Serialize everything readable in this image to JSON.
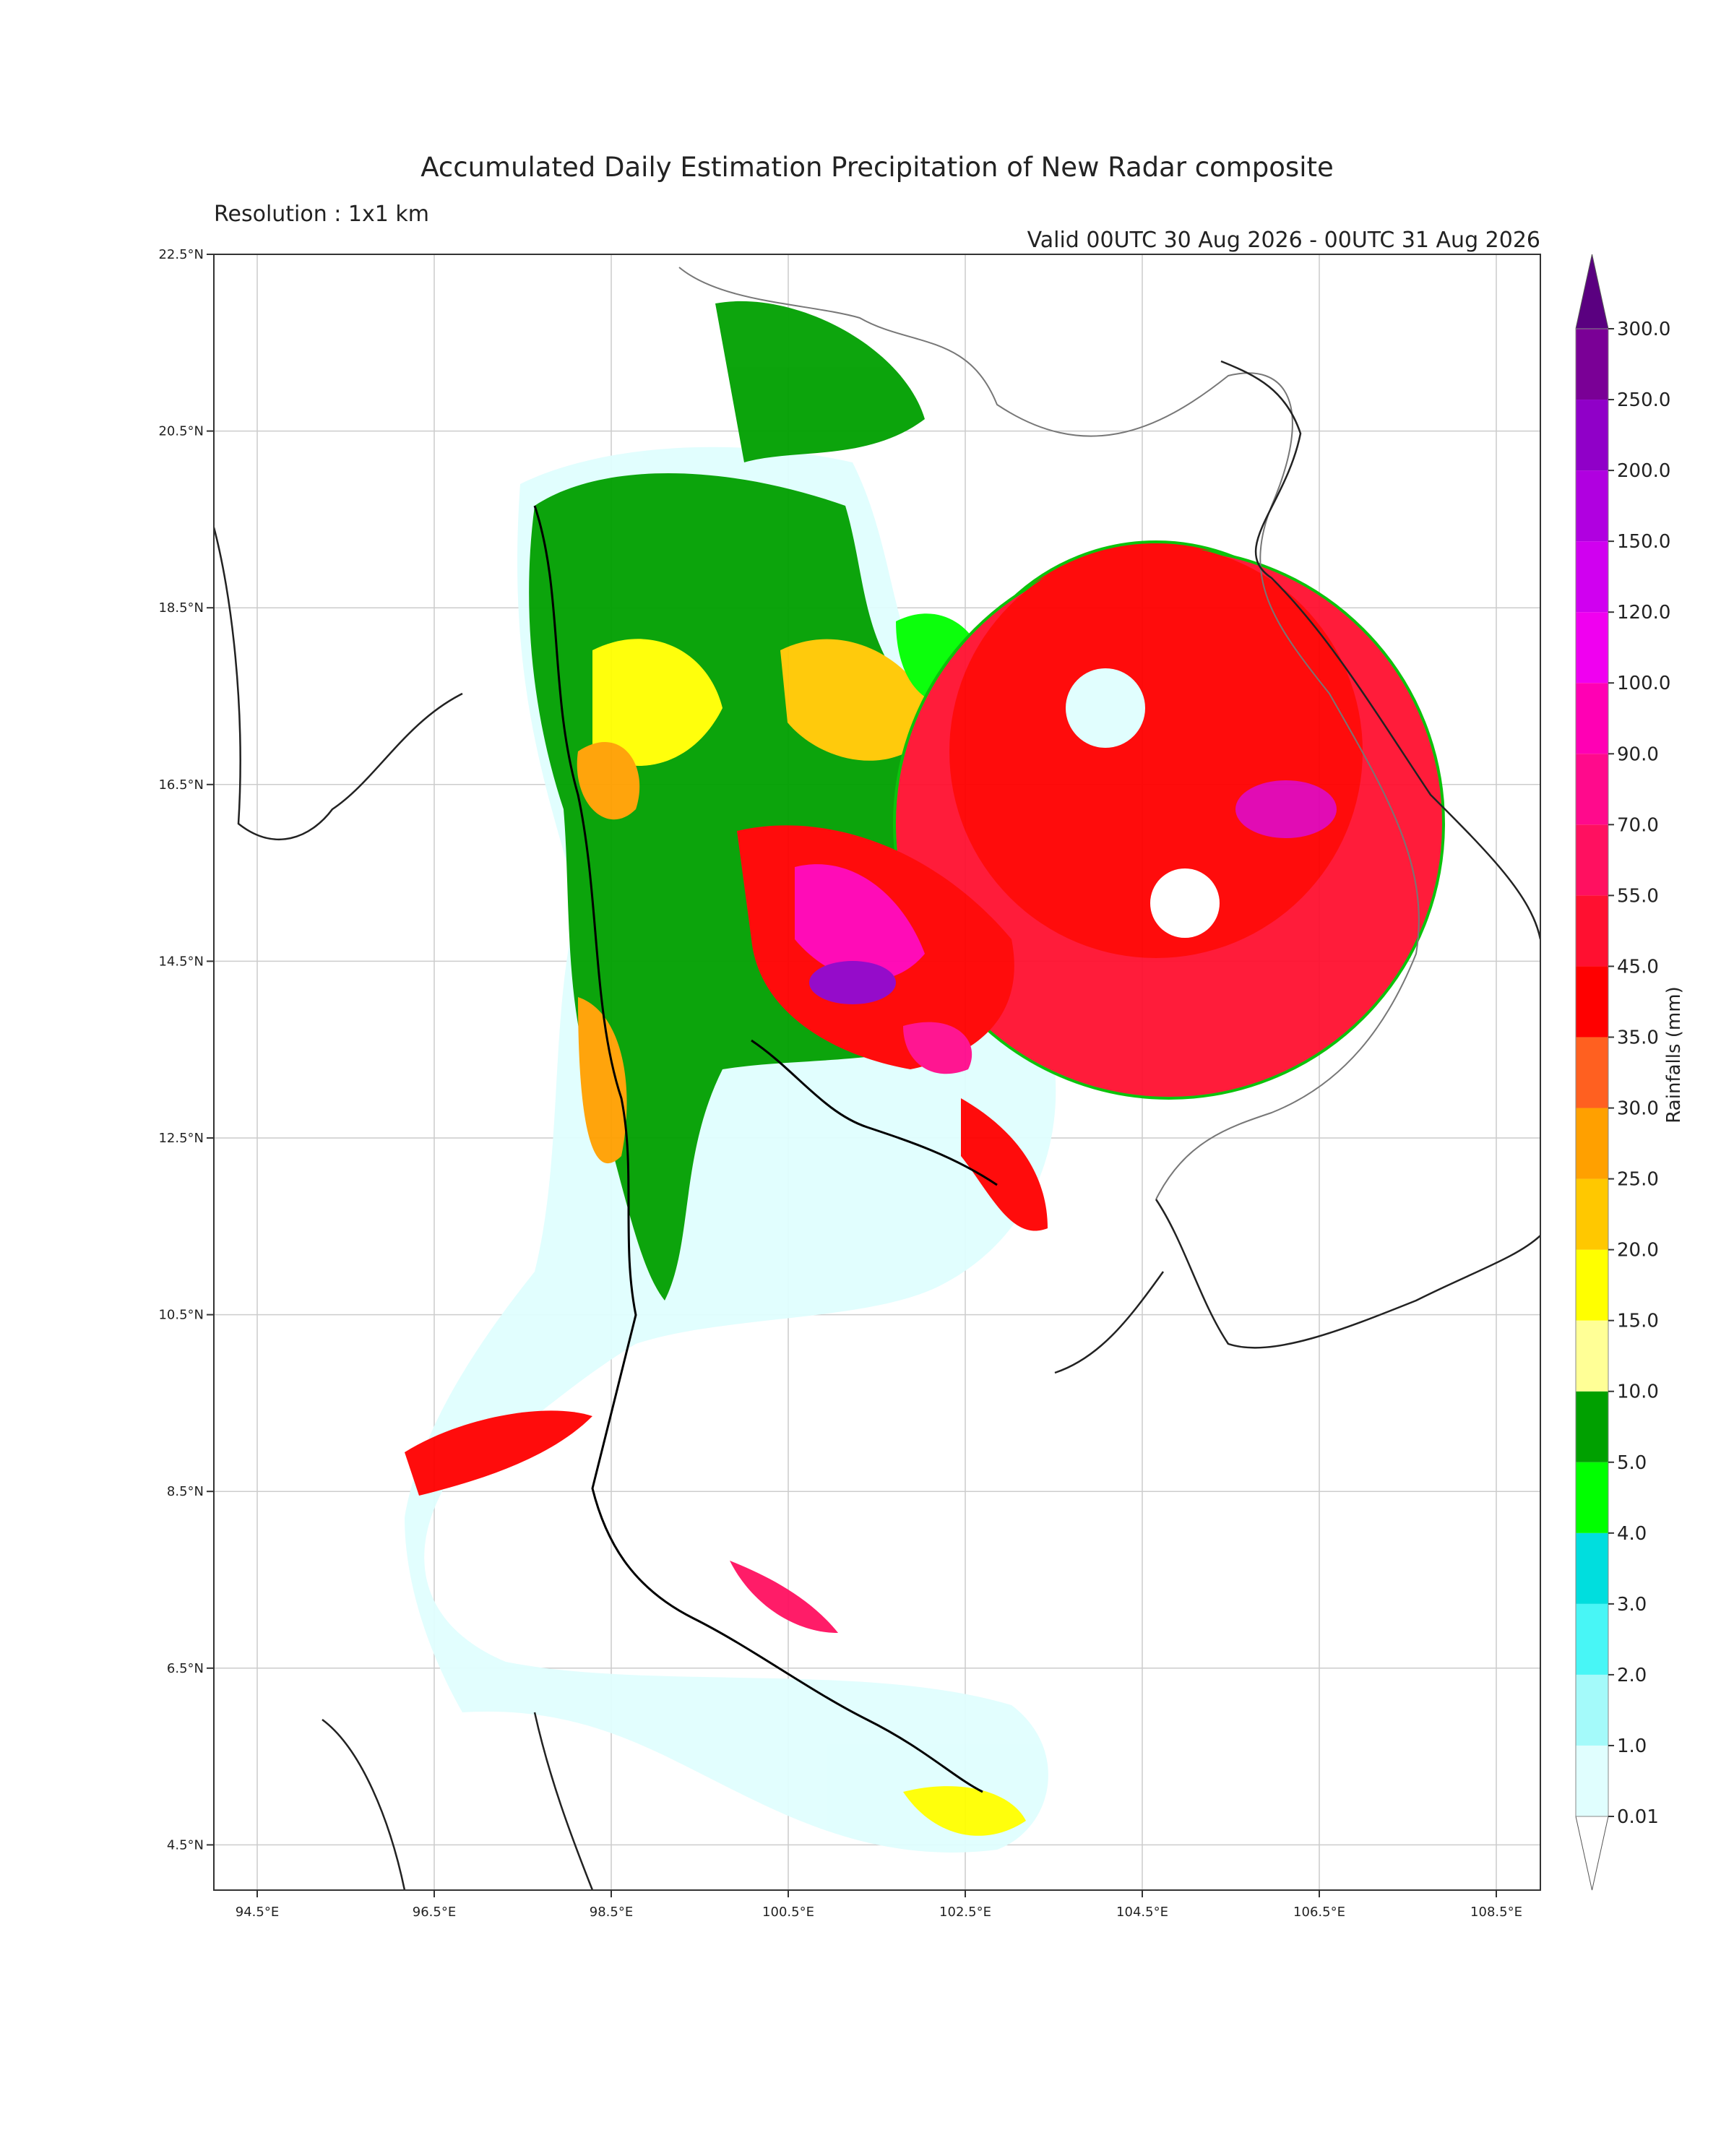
{
  "title": "Accumulated Daily Estimation Precipitation of New Radar composite",
  "subtitle": "Resolution : 1x1 km",
  "valid": "Valid 00UTC 30 Aug 2026 - 00UTC 31 Aug 2026",
  "map": {
    "grid": true,
    "lon_ticks": [
      {
        "value": 94.5,
        "label": "94.5°E"
      },
      {
        "value": 96.5,
        "label": "96.5°E"
      },
      {
        "value": 98.5,
        "label": "98.5°E"
      },
      {
        "value": 100.5,
        "label": "100.5°E"
      },
      {
        "value": 102.5,
        "label": "102.5°E"
      },
      {
        "value": 104.5,
        "label": "104.5°E"
      },
      {
        "value": 106.5,
        "label": "106.5°E"
      },
      {
        "value": 108.5,
        "label": "108.5°E"
      }
    ],
    "lat_ticks": [
      {
        "value": 22.5,
        "label": "22.5°N"
      },
      {
        "value": 20.5,
        "label": "20.5°N"
      },
      {
        "value": 18.5,
        "label": "18.5°N"
      },
      {
        "value": 16.5,
        "label": "16.5°N"
      },
      {
        "value": 14.5,
        "label": "14.5°N"
      },
      {
        "value": 12.5,
        "label": "12.5°N"
      },
      {
        "value": 10.5,
        "label": "10.5°N"
      },
      {
        "value": 8.5,
        "label": "8.5°N"
      },
      {
        "value": 6.5,
        "label": "6.5°N"
      },
      {
        "value": 4.5,
        "label": "4.5°N"
      }
    ]
  },
  "colorbar": {
    "label": "Rainfalls (mm)",
    "levels": [
      0.01,
      {
        "value": 1,
        "label": "1.0"
      },
      {
        "value": 2,
        "label": "2.0"
      },
      {
        "value": 3,
        "label": "3.0"
      },
      {
        "value": 4,
        "label": "4.0"
      },
      {
        "value": 5,
        "label": "5.0"
      },
      {
        "value": 10,
        "label": "10.0"
      },
      {
        "value": 15,
        "label": "15.0"
      },
      {
        "value": 20,
        "label": "20.0"
      },
      {
        "value": 25,
        "label": "25.0"
      },
      {
        "value": 30,
        "label": "30.0"
      },
      {
        "value": 35,
        "label": "35.0"
      },
      {
        "value": 45,
        "label": "45.0"
      },
      {
        "value": 55,
        "label": "55.0"
      },
      {
        "value": 70,
        "label": "70.0"
      },
      {
        "value": 90,
        "label": "90.0"
      },
      {
        "value": 100,
        "label": "100.0"
      },
      {
        "value": 120,
        "label": "120.0"
      },
      {
        "value": 150,
        "label": "150.0"
      },
      {
        "value": 200,
        "label": "200.0"
      },
      {
        "value": 250,
        "label": "250.0"
      },
      {
        "value": 300,
        "label": "300.0"
      }
    ],
    "colors": [
      "#e0fefe",
      "#a4fafa",
      "#48f6f6",
      "#00dede",
      "#00ff00",
      "#00a000",
      "#ffff96",
      "#ffff00",
      "#ffc800",
      "#ffa000",
      "#ff6020",
      "#ff0000",
      "#ff1030",
      "#ff1060",
      "#ff0a8c",
      "#ff00b4",
      "#f000f0",
      "#d000f0",
      "#b000e0",
      "#9000c8",
      "#7a0096"
    ],
    "under_color": "#ffffff",
    "over_color": "#5a0080"
  }
}
